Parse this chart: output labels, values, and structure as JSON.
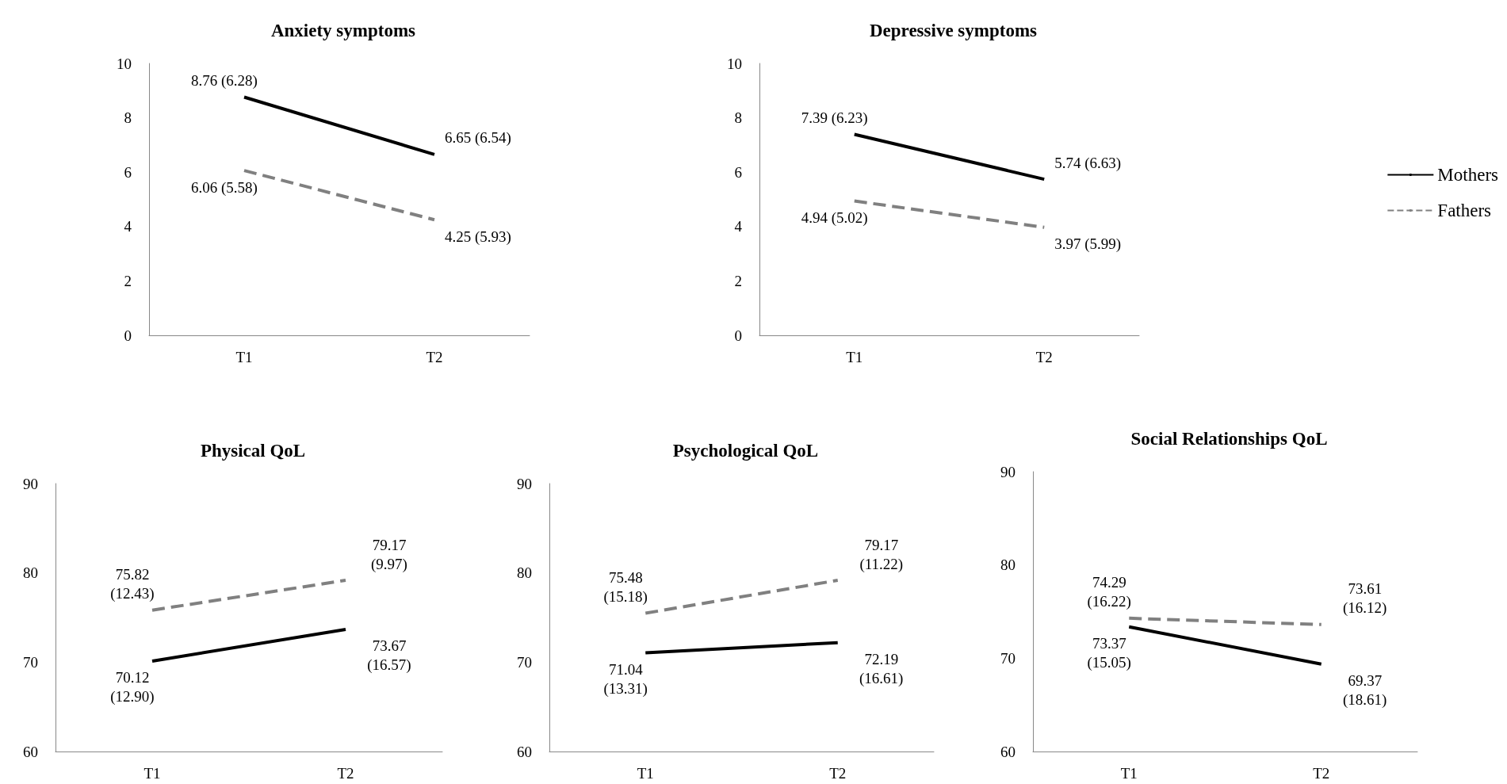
{
  "chart_data": [
    {
      "type": "line",
      "title": "Anxiety symptoms",
      "categories": [
        "T1",
        "T2"
      ],
      "ylim": [
        0,
        10
      ],
      "yticks": [
        0,
        2,
        4,
        6,
        8,
        10
      ],
      "grid": false,
      "marker": "none",
      "legend": false,
      "series": [
        {
          "color": "#000000",
          "line_style": "solid",
          "values": [
            8.76,
            6.65
          ],
          "value_labels": [
            "8.76 (6.28)",
            "6.65 (6.54)"
          ]
        },
        {
          "color": "#808080",
          "line_style": "dashed",
          "values": [
            6.06,
            4.25
          ],
          "value_labels": [
            "6.06 (5.58)",
            "4.25 (5.93)"
          ]
        }
      ]
    },
    {
      "type": "line",
      "title": "Depressive symptoms",
      "categories": [
        "T1",
        "T2"
      ],
      "ylim": [
        0,
        10
      ],
      "yticks": [
        0,
        2,
        4,
        6,
        8,
        10
      ],
      "grid": false,
      "marker": "none",
      "legend": "right",
      "series": [
        {
          "name": "Mothers",
          "color": "#000000",
          "line_style": "solid",
          "values": [
            7.39,
            5.74
          ],
          "value_labels": [
            "7.39 (6.23)",
            "5.74 (6.63)"
          ]
        },
        {
          "name": "Fathers",
          "color": "#808080",
          "line_style": "dashed",
          "values": [
            4.94,
            3.97
          ],
          "value_labels": [
            "4.94 (5.02)",
            "3.97 (5.99)"
          ]
        }
      ]
    },
    {
      "type": "line",
      "title": "Physical QoL",
      "categories": [
        "T1",
        "T2"
      ],
      "ylim": [
        60,
        90
      ],
      "yticks": [
        60,
        70,
        80,
        90
      ],
      "grid": false,
      "marker": "none",
      "legend": false,
      "series": [
        {
          "color": "#000000",
          "line_style": "solid",
          "values": [
            70.12,
            73.67
          ],
          "value_labels": [
            "70.12\n(12.90)",
            "73.67\n(16.57)"
          ]
        },
        {
          "color": "#808080",
          "line_style": "dashed",
          "values": [
            75.82,
            79.17
          ],
          "value_labels": [
            "75.82\n(12.43)",
            "79.17\n(9.97)"
          ]
        }
      ]
    },
    {
      "type": "line",
      "title": "Psychological QoL",
      "categories": [
        "T1",
        "T2"
      ],
      "ylim": [
        60,
        90
      ],
      "yticks": [
        60,
        70,
        80,
        90
      ],
      "grid": false,
      "marker": "none",
      "legend": false,
      "series": [
        {
          "color": "#000000",
          "line_style": "solid",
          "values": [
            71.04,
            72.19
          ],
          "value_labels": [
            "71.04\n(13.31)",
            "72.19\n(16.61)"
          ]
        },
        {
          "color": "#808080",
          "line_style": "dashed",
          "values": [
            75.48,
            79.17
          ],
          "value_labels": [
            "75.48\n(15.18)",
            "79.17\n(11.22)"
          ]
        }
      ]
    },
    {
      "type": "line",
      "title": "Social Relationships QoL",
      "categories": [
        "T1",
        "T2"
      ],
      "ylim": [
        60,
        90
      ],
      "yticks": [
        60,
        70,
        80,
        90
      ],
      "grid": false,
      "marker": "none",
      "legend": false,
      "series": [
        {
          "color": "#000000",
          "line_style": "solid",
          "values": [
            73.37,
            69.37
          ],
          "value_labels": [
            "73.37\n(15.05)",
            "69.37\n(18.61)"
          ]
        },
        {
          "color": "#808080",
          "line_style": "dashed",
          "values": [
            74.29,
            73.61
          ],
          "value_labels": [
            "74.29\n(16.22)",
            "73.61\n(16.12)"
          ]
        }
      ]
    }
  ]
}
